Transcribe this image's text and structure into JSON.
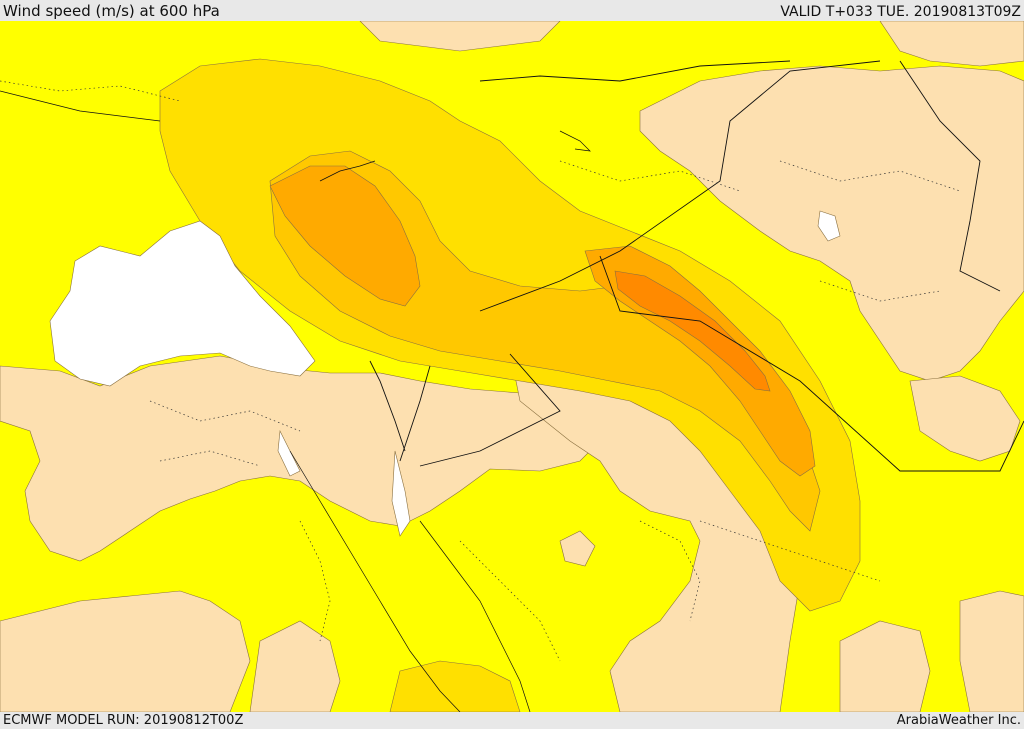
{
  "header": {
    "title": "Wind speed (m/s) at 600 hPa",
    "valid_time": "VALID T+033 TUE. 20190813T09Z"
  },
  "footer": {
    "model_run": "ECMWF MODEL RUN: 20190812T00Z",
    "credit": "ArabiaWeather Inc."
  },
  "colors": {
    "background": "#ffff00",
    "light_wind": "#fde0b0",
    "moderate_wind": "#ffe000",
    "strong_wind": "#ffc800",
    "stronger_wind": "#ffaa00",
    "strongest_wind": "#ff8a00",
    "calm": "#ffffff"
  }
}
